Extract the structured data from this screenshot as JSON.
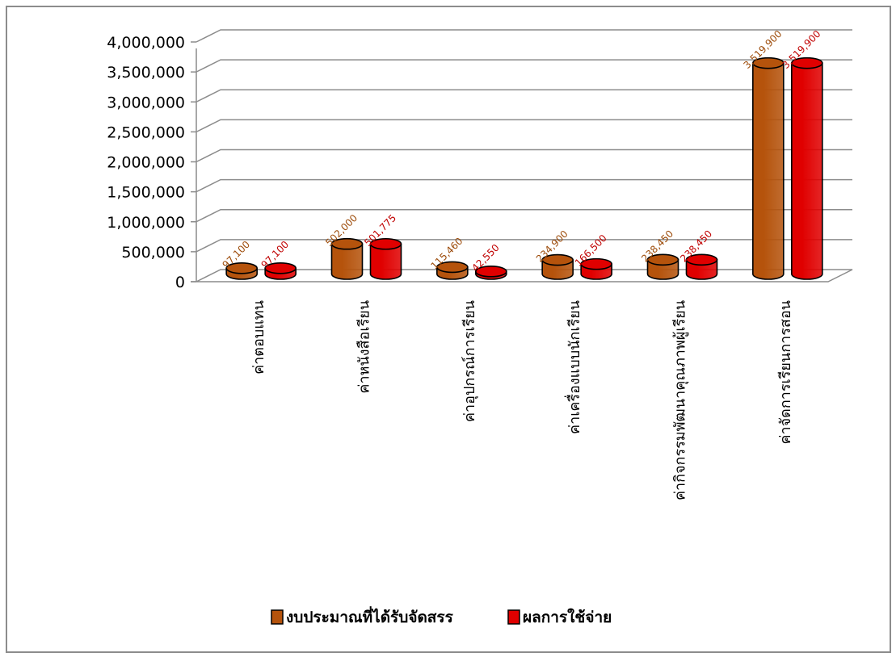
{
  "chart_data": {
    "type": "bar",
    "style": "3d-cylinder",
    "title": "",
    "xlabel": "",
    "ylabel": "",
    "ylim": [
      0,
      4000000
    ],
    "ytick_labels": [
      "0",
      "500,000",
      "1,000,000",
      "1,500,000",
      "2,000,000",
      "2,500,000",
      "3,000,000",
      "3,500,000",
      "4,000,000"
    ],
    "grid": true,
    "legend_position": "bottom",
    "categories": [
      "ค่าตอบแทน",
      "ค่าหนังสือเรียน",
      "ค่าอุปกรณ์การเรียน",
      "ค่าเครื่องแบบนักเรียน",
      "ค่ากิจกรรมพัฒนาคุณภาพผู้เรียน",
      "ค่าจัดการเรียนการสอน"
    ],
    "series": [
      {
        "name": "งบประมาณที่ได้รับจัดสรร",
        "color": "#B5530C",
        "label_color": "#9C4A08",
        "values": [
          97100,
          502000,
          115460,
          234900,
          238450,
          3519900
        ],
        "labels": [
          "97,100",
          "502,000",
          "115,460",
          "234,900",
          "238,450",
          "3,519,900"
        ]
      },
      {
        "name": "ผลการใช้จ่าย",
        "color": "#E00000",
        "label_color": "#C00000",
        "values": [
          97100,
          501775,
          42550,
          166500,
          238450,
          3519900
        ],
        "labels": [
          "97,100",
          "501,775",
          "42,550",
          "166,500",
          "238,450",
          "3,519,900"
        ]
      }
    ]
  }
}
